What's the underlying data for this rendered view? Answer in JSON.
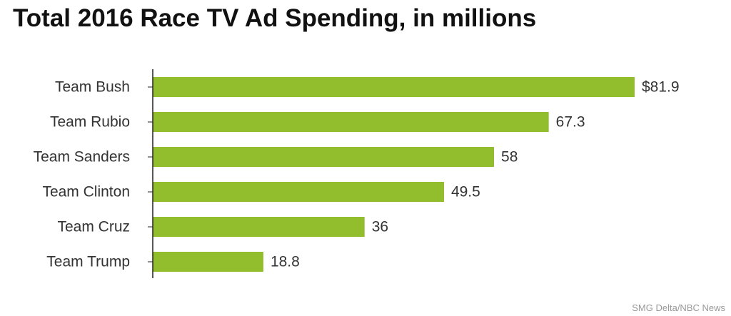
{
  "chart_data": {
    "type": "bar",
    "orientation": "horizontal",
    "title": "Total 2016 Race TV Ad Spending, in millions",
    "categories": [
      "Team Bush",
      "Team Rubio",
      "Team Sanders",
      "Team Clinton",
      "Team Cruz",
      "Team Trump"
    ],
    "values": [
      81.9,
      67.3,
      58,
      49.5,
      36,
      18.8
    ],
    "value_labels": [
      "$81.9",
      "67.3",
      "58",
      "49.5",
      "36",
      "18.8"
    ],
    "xlim": [
      0,
      81.9
    ],
    "grid": false,
    "legend": "none",
    "source": "SMG Delta/NBC News"
  },
  "colors": {
    "bar": "#92bd2c",
    "axis": "#222222",
    "category_text": "#333333",
    "value_text": "#333333"
  }
}
